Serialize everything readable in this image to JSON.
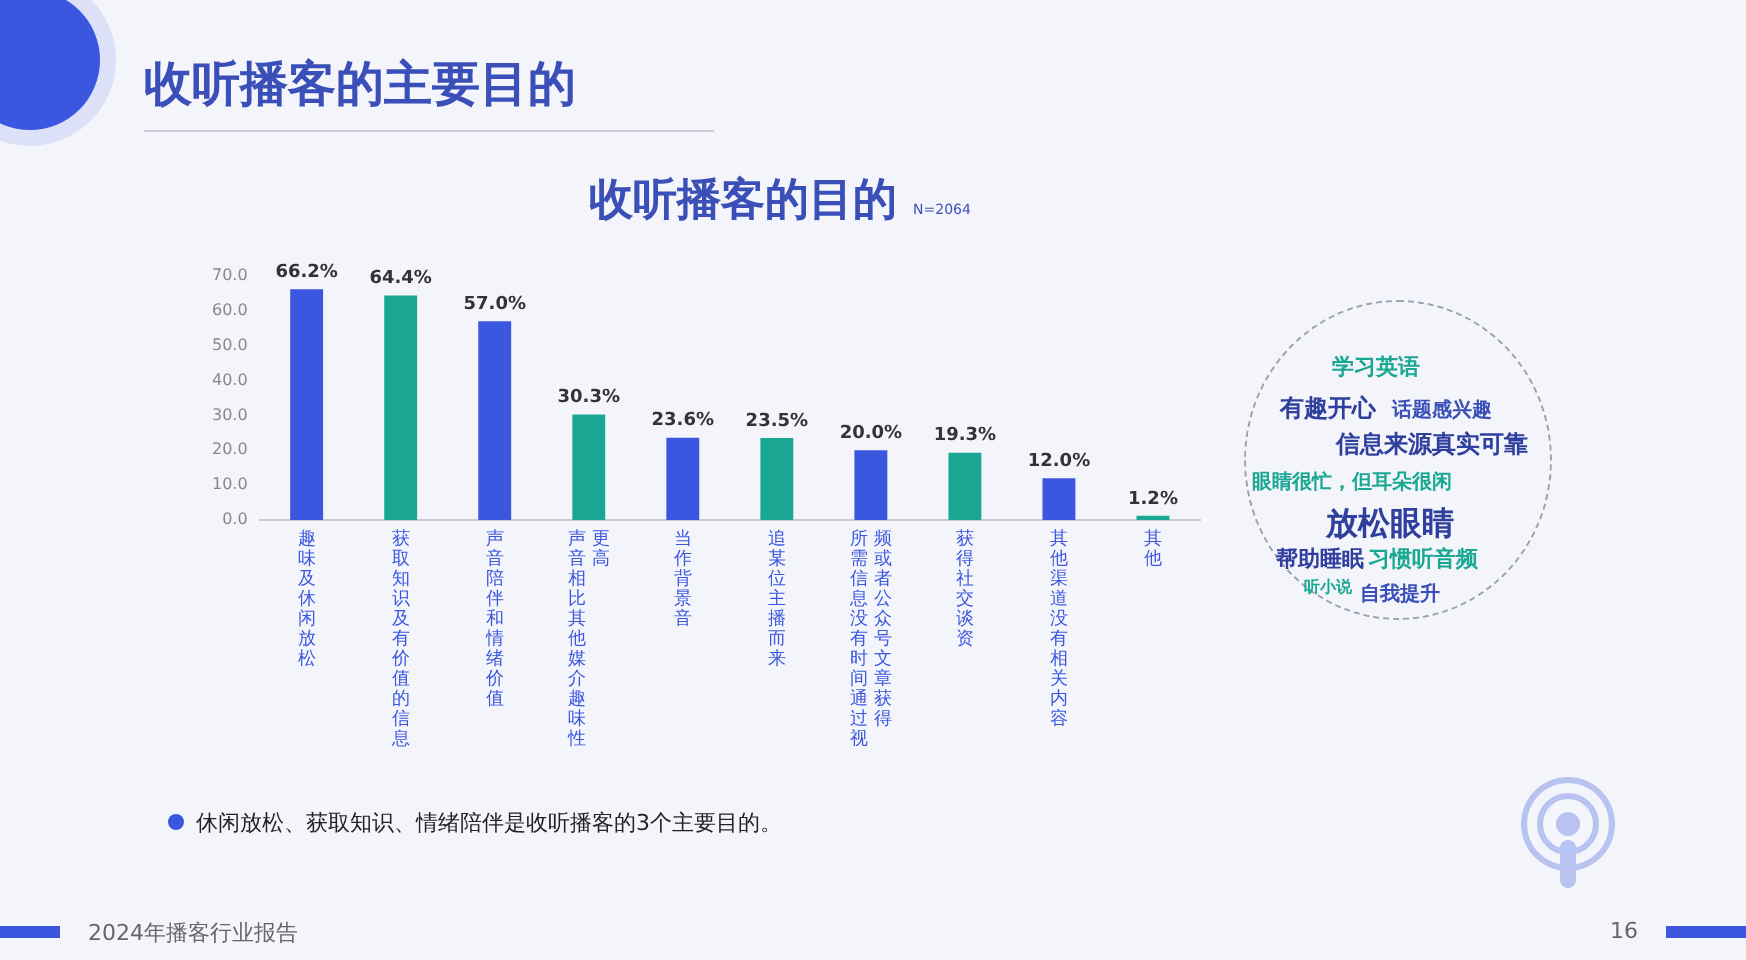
{
  "chart_data": [
    {
      "type": "bar",
      "title": "收听播客的目的",
      "subtitle": "N=2064",
      "categories": [
        "趣味及休闲放松",
        "获取知识及有价值的信息",
        "声音陪伴和情绪价值",
        "声音相比其他媒介趣味性更高",
        "当作背景音",
        "追某位主播而来",
        "所需信息没有时间通过视频或者公众号文章获得",
        "获得社交谈资",
        "其他渠道没有相关内容",
        "其他"
      ],
      "values": [
        66.2,
        64.4,
        57.0,
        30.3,
        23.6,
        23.5,
        20.0,
        19.3,
        12.0,
        1.2
      ],
      "value_labels": [
        "66.2%",
        "64.4%",
        "57.0%",
        "30.3%",
        "23.6%",
        "23.5%",
        "20.0%",
        "19.3%",
        "12.0%",
        "1.2%"
      ],
      "colors": [
        "#3b57e0",
        "#1aa894",
        "#3b57e0",
        "#1aa894",
        "#3b57e0",
        "#1aa894",
        "#3b57e0",
        "#1aa894",
        "#3b57e0",
        "#1aa894"
      ],
      "ylim": [
        0,
        70
      ],
      "yticks": [
        {
          "value": 0,
          "label": "0.0"
        },
        {
          "value": 10,
          "label": "10.0"
        },
        {
          "value": 20,
          "label": "20.0"
        },
        {
          "value": 30,
          "label": "30.0"
        },
        {
          "value": 40,
          "label": "40.0"
        },
        {
          "value": 50,
          "label": "50.0"
        },
        {
          "value": 60,
          "label": "60.0"
        },
        {
          "value": 70,
          "label": "70.0"
        }
      ],
      "grid": false,
      "legend": false,
      "annotations": [
        "收听播客的主要目的",
        "休闲放松、获取知识、情绪陪伴是收听播客的3个主要目的。",
        "2024年播客行业报告",
        "16"
      ]
    },
    {
      "type": "other",
      "annotations": [
        "学习英语",
        "有趣开心",
        "话题感兴趣",
        "信息来源真实可靠",
        "眼睛很忙，但耳朵很闲",
        "放松眼睛",
        "帮助睡眠",
        "习惯听音频",
        "听小说",
        "自我提升"
      ]
    }
  ]
}
